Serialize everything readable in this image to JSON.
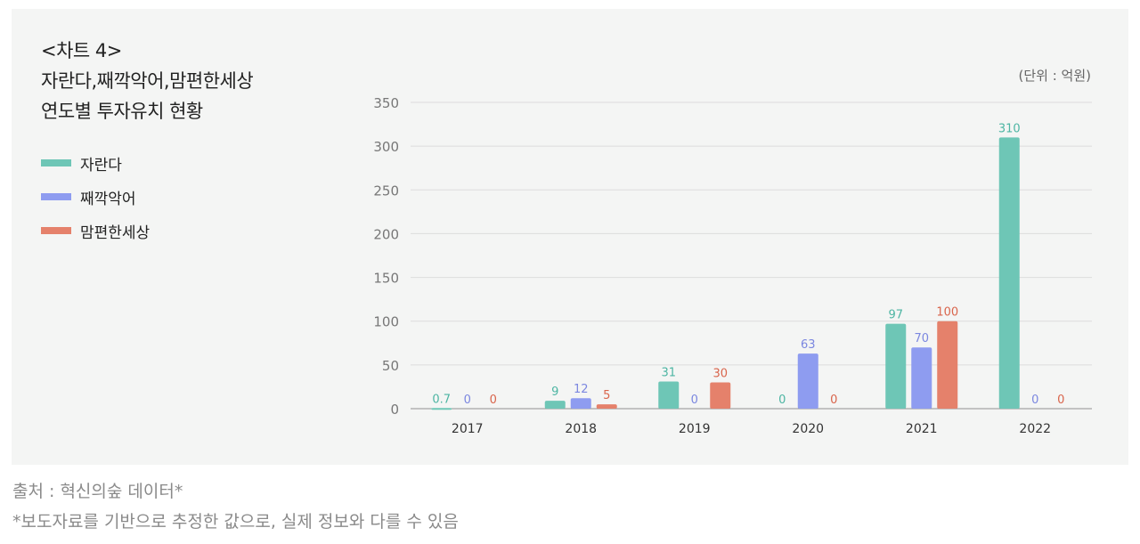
{
  "header": {
    "title_lines": [
      "<차트 4>",
      "자란다,째깍악어,맘편한세상",
      "연도별 투자유치 현황"
    ],
    "unit": "(단위 : 억원)"
  },
  "legend": [
    {
      "name": "자란다",
      "color": "#6ec6b6"
    },
    {
      "name": "째깍악어",
      "color": "#8e9cf0"
    },
    {
      "name": "맘편한세상",
      "color": "#e5816b"
    }
  ],
  "chart_data": {
    "type": "bar",
    "categories": [
      "2017",
      "2018",
      "2019",
      "2020",
      "2021",
      "2022"
    ],
    "series": [
      {
        "name": "자란다",
        "color": "#6ec6b6",
        "label_color": "#4db5a3",
        "values": [
          0.7,
          9,
          31,
          0,
          97,
          310
        ],
        "labels": [
          "0.7",
          "9",
          "31",
          "0",
          "97",
          "310"
        ]
      },
      {
        "name": "째깍악어",
        "color": "#8e9cf0",
        "label_color": "#7b87e0",
        "values": [
          0,
          12,
          0,
          63,
          70,
          0
        ],
        "labels": [
          "0",
          "12",
          "0",
          "63",
          "70",
          "0"
        ]
      },
      {
        "name": "맘편한세상",
        "color": "#e5816b",
        "label_color": "#d9654c",
        "values": [
          0,
          5,
          30,
          0,
          100,
          0
        ],
        "labels": [
          "0",
          "5",
          "30",
          "0",
          "100",
          "0"
        ]
      }
    ],
    "yticks": [
      "0",
      "50",
      "100",
      "150",
      "200",
      "250",
      "300",
      "350"
    ],
    "ylim": [
      0,
      350
    ],
    "grid": true,
    "legend_position": "left"
  },
  "footnotes": {
    "source": "출처 : 혁신의숲 데이터*",
    "note": "*보도자료를 기반으로 추정한 값으로, 실제 정보와 다를 수 있음"
  }
}
